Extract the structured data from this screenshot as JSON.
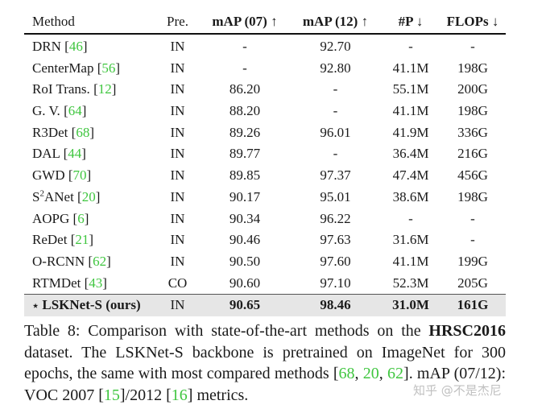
{
  "table": {
    "headers": [
      "Method",
      "Pre.",
      "mAP (07) ↑",
      "mAP (12) ↑",
      "#P ↓",
      "FLOPs ↓"
    ],
    "rows": [
      {
        "name": "DRN",
        "ref": "46",
        "pre": "IN",
        "map07": "-",
        "map12": "92.70",
        "params": "-",
        "flops": "-"
      },
      {
        "name": "CenterMap",
        "ref": "56",
        "pre": "IN",
        "map07": "-",
        "map12": "92.80",
        "params": "41.1M",
        "flops": "198G"
      },
      {
        "name": "RoI Trans.",
        "ref": "12",
        "pre": "IN",
        "map07": "86.20",
        "map12": "-",
        "params": "55.1M",
        "flops": "200G"
      },
      {
        "name": "G. V.",
        "ref": "64",
        "pre": "IN",
        "map07": "88.20",
        "map12": "-",
        "params": "41.1M",
        "flops": "198G"
      },
      {
        "name": "R3Det",
        "ref": "68",
        "pre": "IN",
        "map07": "89.26",
        "map12": "96.01",
        "params": "41.9M",
        "flops": "336G"
      },
      {
        "name": "DAL",
        "ref": "44",
        "pre": "IN",
        "map07": "89.77",
        "map12": "-",
        "params": "36.4M",
        "flops": "216G"
      },
      {
        "name": "GWD",
        "ref": "70",
        "pre": "IN",
        "map07": "89.85",
        "map12": "97.37",
        "params": "47.4M",
        "flops": "456G"
      },
      {
        "name_pre": "S",
        "name_sup": "2",
        "name": "ANet",
        "ref": "20",
        "pre": "IN",
        "map07": "90.17",
        "map12": "95.01",
        "params": "38.6M",
        "flops": "198G"
      },
      {
        "name": "AOPG",
        "ref": "6",
        "pre": "IN",
        "map07": "90.34",
        "map12": "96.22",
        "params": "-",
        "flops": "-"
      },
      {
        "name": "ReDet",
        "ref": "21",
        "pre": "IN",
        "map07": "90.46",
        "map12": "97.63",
        "params": "31.6M",
        "flops": "-"
      },
      {
        "name": "O-RCNN",
        "ref": "62",
        "pre": "IN",
        "map07": "90.50",
        "map12": "97.60",
        "params": "41.1M",
        "flops": "199G"
      },
      {
        "name": "RTMDet",
        "ref": "43",
        "pre": "CO",
        "map07": "90.60",
        "map12": "97.10",
        "params": "52.3M",
        "flops": "205G"
      }
    ],
    "ours": {
      "star": "⋆",
      "name": "LSKNet-S (ours)",
      "pre": "IN",
      "map07": "90.65",
      "map12": "98.46",
      "params": "31.0M",
      "flops": "161G"
    }
  },
  "caption": {
    "label": "Table 8:",
    "t1": " Comparison with state-of-the-art methods on the ",
    "dataset": "HRSC2016",
    "t2": " dataset. The LSKNet-S backbone is pretrained on ImageNet for 300 epochs, the same with most compared methods [",
    "r1": "68",
    "sep1": ", ",
    "r2": "20",
    "sep2": ", ",
    "r3": "62",
    "t3": "]. mAP (07/12): VOC 2007 [",
    "r4": "15",
    "t4": "]/2012 [",
    "r5": "16",
    "t5": "] metrics."
  },
  "watermark": "知乎 @不是杰尼"
}
